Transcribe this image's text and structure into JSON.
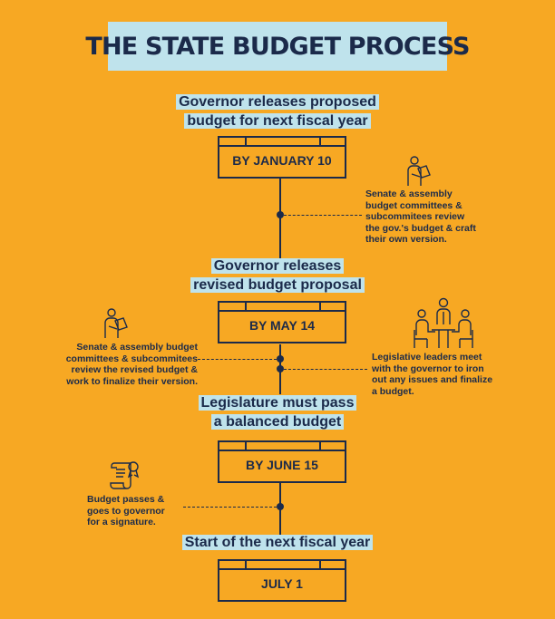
{
  "title": "THE STATE BUDGET PROCESS",
  "steps": [
    {
      "heading_line1": "Governor releases proposed",
      "heading_line2": "budget for next fiscal year",
      "date": "BY JANUARY 10"
    },
    {
      "heading_line1": "Governor releases",
      "heading_line2": "revised budget proposal",
      "date": "BY MAY 14"
    },
    {
      "heading_line1": "Legislature must pass",
      "heading_line2": "a balanced budget",
      "date": "BY JUNE 15"
    },
    {
      "heading_line1": "Start of the next fiscal year",
      "date": "JULY 1"
    }
  ],
  "notes": {
    "committees_review_gov": [
      "Senate & assembly",
      "budget committees &",
      "subcommitees review",
      "the gov.'s budget & craft",
      "their own version."
    ],
    "committees_review_revised": [
      "Senate & assembly budget",
      "committees & subcommitees",
      "review the revised budget &",
      "work to finalize their version."
    ],
    "leaders_meet": [
      "Legislative leaders meet",
      "with the governor to iron",
      "out any issues and finalize",
      "a budget."
    ],
    "budget_passes": [
      "Budget passes &",
      "goes to governor",
      "for a signature."
    ]
  },
  "icons": {
    "reviewer_1": "person-reading-icon",
    "reviewer_2": "person-reading-icon",
    "meeting": "meeting-icon",
    "document": "scroll-seal-icon"
  },
  "colors": {
    "background": "#F7A823",
    "navy": "#1B2A4A",
    "highlight": "#BFE3EC"
  }
}
